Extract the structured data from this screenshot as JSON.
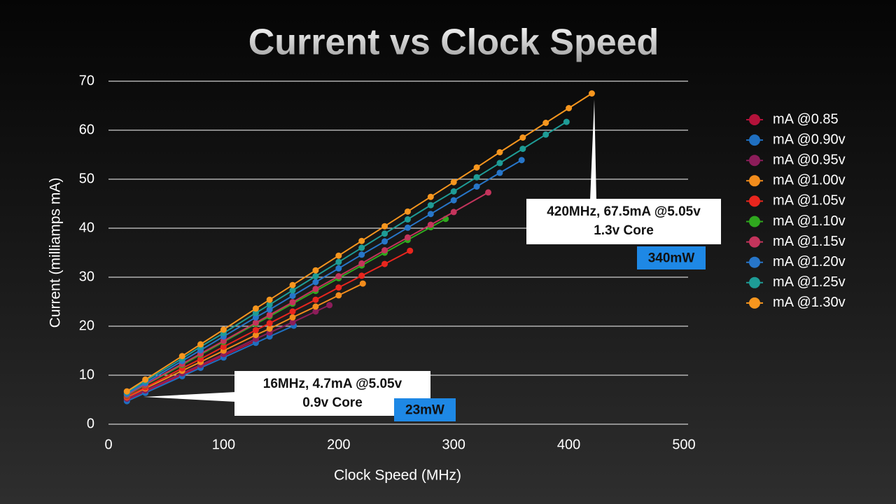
{
  "chart_data": {
    "type": "line",
    "title": "Current vs Clock Speed",
    "x_label": "Clock Speed (MHz)",
    "y_label": "Current (milliamps mA)",
    "xlim": [
      0,
      500
    ],
    "xticks": [
      0,
      100,
      200,
      300,
      400,
      500
    ],
    "ylim": [
      0,
      70
    ],
    "yticks": [
      0,
      10,
      20,
      30,
      40,
      50,
      60,
      70
    ],
    "grid": true,
    "legend": "right",
    "series": [
      {
        "name": "mA @0.85",
        "color": "#b3123a",
        "x": [
          16,
          32,
          64,
          80,
          100,
          128
        ],
        "values": [
          5.0,
          6.7,
          10.1,
          11.8,
          14.0,
          17.0
        ]
      },
      {
        "name": "mA @0.90v",
        "color": "#1f6fc0",
        "x": [
          16,
          32,
          64,
          80,
          100,
          128,
          140,
          161
        ],
        "values": [
          4.7,
          6.4,
          9.8,
          11.5,
          13.6,
          16.6,
          17.9,
          20.1
        ]
      },
      {
        "name": "mA @0.95v",
        "color": "#8c1d5a",
        "x": [
          16,
          32,
          64,
          80,
          100,
          128,
          140,
          160,
          180,
          192
        ],
        "values": [
          5.2,
          6.9,
          10.4,
          12.1,
          14.3,
          17.4,
          18.7,
          20.8,
          23.0,
          24.3
        ]
      },
      {
        "name": "mA @1.00v",
        "color": "#f28c1c",
        "x": [
          16,
          32,
          64,
          80,
          100,
          128,
          140,
          160,
          180,
          200,
          221
        ],
        "values": [
          5.5,
          7.3,
          10.9,
          12.7,
          15.0,
          18.2,
          19.5,
          21.8,
          24.0,
          26.3,
          28.7
        ]
      },
      {
        "name": "mA @1.05v",
        "color": "#e8261e",
        "x": [
          16,
          32,
          64,
          80,
          100,
          128,
          140,
          160,
          180,
          200,
          220,
          240,
          262
        ],
        "values": [
          5.6,
          7.5,
          11.4,
          13.3,
          15.8,
          19.2,
          20.6,
          23.0,
          25.4,
          27.9,
          30.3,
          32.7,
          35.4
        ]
      },
      {
        "name": "mA @1.10v",
        "color": "#2fa81e",
        "x": [
          16,
          32,
          64,
          80,
          100,
          128,
          140,
          160,
          180,
          200,
          220,
          240,
          260,
          280,
          293
        ],
        "values": [
          5.9,
          8.0,
          12.1,
          14.2,
          16.8,
          20.5,
          22.0,
          24.6,
          27.2,
          29.8,
          32.4,
          35.0,
          37.6,
          40.2,
          41.9
        ]
      },
      {
        "name": "mA @1.15v",
        "color": "#c4345c",
        "x": [
          16,
          32,
          64,
          80,
          100,
          128,
          140,
          160,
          180,
          200,
          220,
          240,
          260,
          280,
          300,
          330
        ],
        "values": [
          6.0,
          8.1,
          12.3,
          14.4,
          17.0,
          20.7,
          22.3,
          24.9,
          27.6,
          30.2,
          32.8,
          35.5,
          38.1,
          40.7,
          43.3,
          47.3
        ]
      },
      {
        "name": "mA @1.20v",
        "color": "#2776c9",
        "x": [
          16,
          32,
          64,
          80,
          100,
          128,
          140,
          160,
          180,
          200,
          220,
          240,
          260,
          280,
          300,
          320,
          340,
          359
        ],
        "values": [
          6.2,
          8.4,
          12.9,
          15.1,
          17.9,
          21.8,
          23.4,
          26.2,
          29.0,
          31.8,
          34.6,
          37.3,
          40.1,
          42.9,
          45.7,
          48.5,
          51.3,
          53.9
        ]
      },
      {
        "name": "mA @1.25v",
        "color": "#1e9c96",
        "x": [
          16,
          32,
          64,
          80,
          100,
          128,
          140,
          160,
          180,
          200,
          220,
          240,
          260,
          280,
          300,
          320,
          340,
          360,
          380,
          398
        ],
        "values": [
          6.5,
          8.8,
          13.4,
          15.8,
          18.6,
          22.7,
          24.4,
          27.3,
          30.2,
          33.1,
          36.0,
          38.9,
          41.8,
          44.7,
          47.5,
          50.4,
          53.3,
          56.2,
          59.1,
          61.7
        ]
      },
      {
        "name": "mA @1.30v",
        "color": "#f7961e",
        "x": [
          16,
          32,
          64,
          80,
          100,
          128,
          140,
          160,
          180,
          200,
          220,
          240,
          260,
          280,
          300,
          320,
          340,
          360,
          380,
          400,
          420
        ],
        "values": [
          6.7,
          9.1,
          13.9,
          16.3,
          19.3,
          23.6,
          25.4,
          28.4,
          31.4,
          34.4,
          37.4,
          40.4,
          43.4,
          46.4,
          49.4,
          52.4,
          55.5,
          58.5,
          61.5,
          64.5,
          67.5
        ]
      }
    ],
    "annotations": [
      {
        "lines": [
          "420MHz, 67.5mA @5.05v",
          "1.3v Core"
        ],
        "badge": "340mW"
      },
      {
        "lines": [
          "16MHz, 4.7mA @5.05v",
          "0.9v Core"
        ],
        "badge": "23mW"
      }
    ]
  }
}
